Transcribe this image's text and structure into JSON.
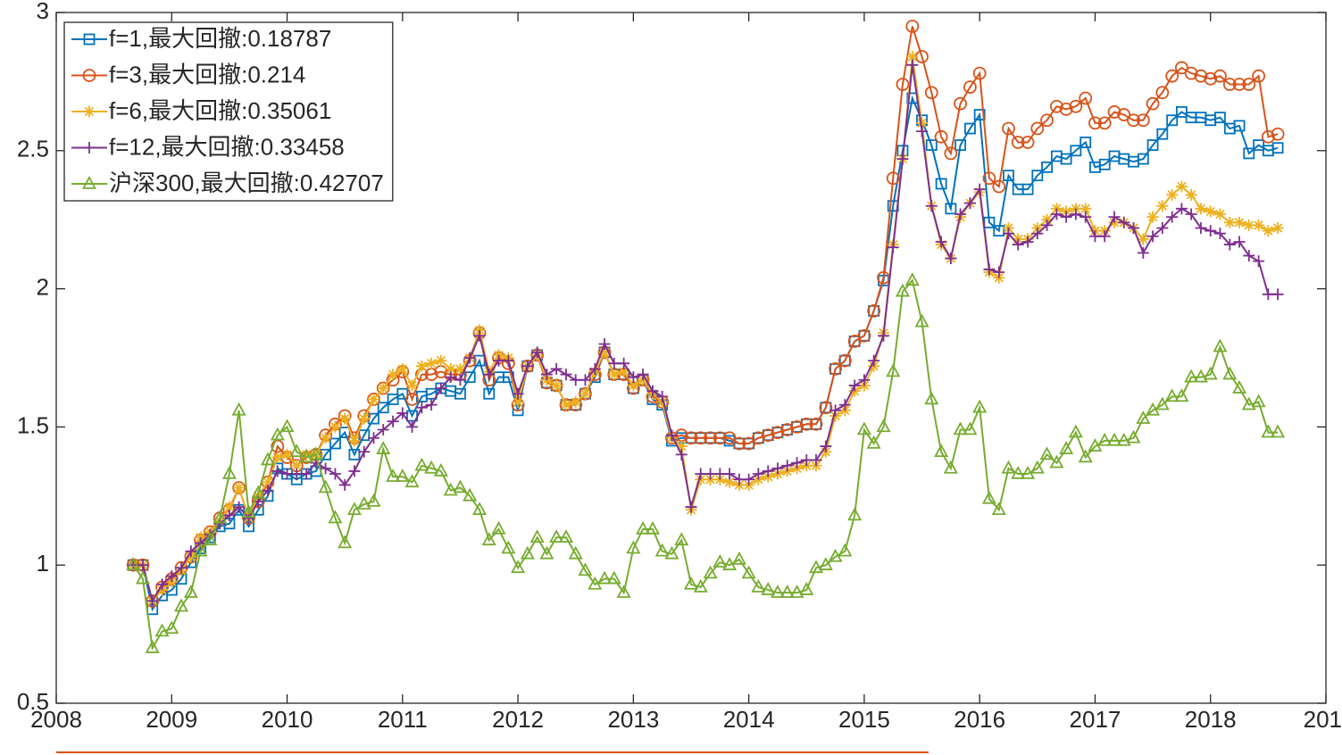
{
  "chart_data": {
    "type": "line",
    "x": [
      2008.667,
      2008.75,
      2008.833,
      2008.917,
      2009,
      2009.083,
      2009.167,
      2009.25,
      2009.333,
      2009.417,
      2009.5,
      2009.583,
      2009.667,
      2009.75,
      2009.833,
      2009.917,
      2010,
      2010.083,
      2010.167,
      2010.25,
      2010.333,
      2010.417,
      2010.5,
      2010.583,
      2010.667,
      2010.75,
      2010.833,
      2010.917,
      2011,
      2011.083,
      2011.167,
      2011.25,
      2011.333,
      2011.417,
      2011.5,
      2011.583,
      2011.667,
      2011.75,
      2011.833,
      2011.917,
      2012,
      2012.083,
      2012.167,
      2012.25,
      2012.333,
      2012.417,
      2012.5,
      2012.583,
      2012.667,
      2012.75,
      2012.833,
      2012.917,
      2013,
      2013.083,
      2013.167,
      2013.25,
      2013.333,
      2013.417,
      2013.5,
      2013.583,
      2013.667,
      2013.75,
      2013.833,
      2013.917,
      2014,
      2014.083,
      2014.167,
      2014.25,
      2014.333,
      2014.417,
      2014.5,
      2014.583,
      2014.667,
      2014.75,
      2014.833,
      2014.917,
      2015,
      2015.083,
      2015.167,
      2015.25,
      2015.333,
      2015.417,
      2015.5,
      2015.583,
      2015.667,
      2015.75,
      2015.833,
      2015.917,
      2016,
      2016.083,
      2016.167,
      2016.25,
      2016.333,
      2016.417,
      2016.5,
      2016.583,
      2016.667,
      2016.75,
      2016.833,
      2016.917,
      2017,
      2017.083,
      2017.167,
      2017.25,
      2017.333,
      2017.417,
      2017.5,
      2017.583,
      2017.667,
      2017.75,
      2017.833,
      2017.917,
      2018,
      2018.083,
      2018.167,
      2018.25,
      2018.333,
      2018.417,
      2018.5,
      2018.583
    ],
    "series": [
      {
        "name": "f=1,最大回撤:0.18787",
        "color": "#0072BD",
        "marker": "square",
        "values": [
          1.0,
          1.0,
          0.84,
          0.89,
          0.91,
          0.95,
          1.01,
          1.06,
          1.1,
          1.14,
          1.15,
          1.2,
          1.14,
          1.2,
          1.25,
          1.35,
          1.33,
          1.31,
          1.33,
          1.34,
          1.4,
          1.44,
          1.48,
          1.4,
          1.47,
          1.53,
          1.57,
          1.6,
          1.62,
          1.54,
          1.61,
          1.62,
          1.64,
          1.63,
          1.62,
          1.68,
          1.74,
          1.62,
          1.68,
          1.68,
          1.56,
          1.72,
          1.76,
          1.66,
          1.65,
          1.58,
          1.58,
          1.62,
          1.68,
          1.77,
          1.69,
          1.69,
          1.64,
          1.67,
          1.6,
          1.58,
          1.45,
          1.46,
          1.46,
          1.46,
          1.46,
          1.46,
          1.45,
          1.44,
          1.44,
          1.46,
          1.47,
          1.48,
          1.49,
          1.5,
          1.51,
          1.51,
          1.57,
          1.71,
          1.74,
          1.81,
          1.83,
          1.92,
          2.03,
          2.3,
          2.5,
          2.69,
          2.61,
          2.52,
          2.38,
          2.29,
          2.52,
          2.58,
          2.63,
          2.24,
          2.21,
          2.41,
          2.36,
          2.36,
          2.41,
          2.44,
          2.48,
          2.47,
          2.5,
          2.53,
          2.44,
          2.45,
          2.48,
          2.47,
          2.46,
          2.47,
          2.52,
          2.56,
          2.61,
          2.64,
          2.62,
          2.62,
          2.61,
          2.62,
          2.58,
          2.59,
          2.49,
          2.52,
          2.5,
          2.51
        ]
      },
      {
        "name": "f=3,最大回撤:0.214",
        "color": "#D95319",
        "marker": "circle",
        "values": [
          1.0,
          1.0,
          0.87,
          0.92,
          0.95,
          0.99,
          1.03,
          1.09,
          1.12,
          1.17,
          1.2,
          1.28,
          1.17,
          1.23,
          1.3,
          1.43,
          1.39,
          1.36,
          1.39,
          1.4,
          1.47,
          1.51,
          1.54,
          1.46,
          1.54,
          1.6,
          1.64,
          1.67,
          1.7,
          1.6,
          1.69,
          1.69,
          1.7,
          1.69,
          1.69,
          1.74,
          1.84,
          1.67,
          1.75,
          1.73,
          1.58,
          1.72,
          1.76,
          1.66,
          1.65,
          1.58,
          1.58,
          1.62,
          1.69,
          1.77,
          1.69,
          1.69,
          1.64,
          1.67,
          1.61,
          1.59,
          1.46,
          1.47,
          1.46,
          1.46,
          1.46,
          1.46,
          1.46,
          1.44,
          1.44,
          1.46,
          1.47,
          1.48,
          1.49,
          1.5,
          1.51,
          1.51,
          1.57,
          1.71,
          1.74,
          1.81,
          1.83,
          1.92,
          2.04,
          2.4,
          2.74,
          2.95,
          2.84,
          2.71,
          2.55,
          2.49,
          2.67,
          2.73,
          2.78,
          2.4,
          2.37,
          2.58,
          2.53,
          2.53,
          2.58,
          2.61,
          2.66,
          2.65,
          2.66,
          2.69,
          2.6,
          2.6,
          2.64,
          2.63,
          2.61,
          2.61,
          2.67,
          2.71,
          2.77,
          2.8,
          2.78,
          2.77,
          2.76,
          2.77,
          2.74,
          2.74,
          2.74,
          2.77,
          2.55,
          2.56
        ]
      },
      {
        "name": "f=6,最大回撤:0.35061",
        "color": "#EDB120",
        "marker": "asterisk",
        "values": [
          1.0,
          1.0,
          0.87,
          0.91,
          0.94,
          0.98,
          1.03,
          1.1,
          1.12,
          1.16,
          1.21,
          1.28,
          1.17,
          1.25,
          1.3,
          1.39,
          1.4,
          1.36,
          1.4,
          1.4,
          1.46,
          1.5,
          1.53,
          1.45,
          1.53,
          1.6,
          1.64,
          1.69,
          1.71,
          1.65,
          1.72,
          1.73,
          1.74,
          1.71,
          1.71,
          1.75,
          1.85,
          1.7,
          1.76,
          1.75,
          1.59,
          1.72,
          1.76,
          1.67,
          1.65,
          1.58,
          1.59,
          1.62,
          1.7,
          1.77,
          1.69,
          1.7,
          1.65,
          1.67,
          1.62,
          1.59,
          1.46,
          1.43,
          1.2,
          1.31,
          1.31,
          1.31,
          1.3,
          1.29,
          1.29,
          1.31,
          1.32,
          1.33,
          1.34,
          1.35,
          1.36,
          1.36,
          1.41,
          1.54,
          1.56,
          1.63,
          1.65,
          1.72,
          1.84,
          2.16,
          2.47,
          2.84,
          2.6,
          2.3,
          2.16,
          2.11,
          2.26,
          2.31,
          2.35,
          2.06,
          2.04,
          2.22,
          2.18,
          2.18,
          2.22,
          2.25,
          2.29,
          2.28,
          2.29,
          2.29,
          2.21,
          2.21,
          2.24,
          2.24,
          2.22,
          2.18,
          2.26,
          2.3,
          2.34,
          2.37,
          2.34,
          2.29,
          2.28,
          2.27,
          2.24,
          2.24,
          2.23,
          2.23,
          2.21,
          2.22
        ]
      },
      {
        "name": "f=12,最大回撤:0.33458",
        "color": "#7E2F8E",
        "marker": "plus",
        "values": [
          1.0,
          1.0,
          0.87,
          0.93,
          0.96,
          0.99,
          1.05,
          1.08,
          1.11,
          1.15,
          1.18,
          1.21,
          1.17,
          1.23,
          1.27,
          1.34,
          1.33,
          1.33,
          1.33,
          1.37,
          1.35,
          1.33,
          1.29,
          1.34,
          1.41,
          1.46,
          1.49,
          1.52,
          1.55,
          1.5,
          1.57,
          1.58,
          1.64,
          1.68,
          1.67,
          1.75,
          1.83,
          1.69,
          1.74,
          1.74,
          1.62,
          1.72,
          1.77,
          1.69,
          1.71,
          1.69,
          1.67,
          1.67,
          1.71,
          1.8,
          1.73,
          1.73,
          1.68,
          1.69,
          1.63,
          1.61,
          1.47,
          1.4,
          1.21,
          1.33,
          1.33,
          1.33,
          1.33,
          1.31,
          1.31,
          1.33,
          1.34,
          1.35,
          1.36,
          1.37,
          1.38,
          1.38,
          1.43,
          1.56,
          1.58,
          1.65,
          1.67,
          1.74,
          1.83,
          2.15,
          2.47,
          2.81,
          2.57,
          2.3,
          2.17,
          2.11,
          2.27,
          2.31,
          2.36,
          2.07,
          2.06,
          2.2,
          2.16,
          2.17,
          2.2,
          2.23,
          2.27,
          2.26,
          2.27,
          2.26,
          2.19,
          2.19,
          2.26,
          2.24,
          2.22,
          2.13,
          2.19,
          2.22,
          2.26,
          2.29,
          2.27,
          2.22,
          2.21,
          2.2,
          2.16,
          2.17,
          2.12,
          2.1,
          1.98,
          1.98
        ]
      },
      {
        "name": "沪深300,最大回撤:0.42707",
        "color": "#77AC30",
        "marker": "triangle",
        "values": [
          1.0,
          0.95,
          0.7,
          0.76,
          0.77,
          0.85,
          0.9,
          1.05,
          1.09,
          1.17,
          1.33,
          1.56,
          1.19,
          1.26,
          1.38,
          1.47,
          1.5,
          1.41,
          1.39,
          1.4,
          1.28,
          1.17,
          1.08,
          1.2,
          1.22,
          1.23,
          1.42,
          1.32,
          1.32,
          1.3,
          1.36,
          1.35,
          1.34,
          1.27,
          1.28,
          1.25,
          1.2,
          1.09,
          1.13,
          1.06,
          0.99,
          1.04,
          1.1,
          1.04,
          1.1,
          1.1,
          1.04,
          0.98,
          0.93,
          0.95,
          0.95,
          0.9,
          1.06,
          1.13,
          1.13,
          1.05,
          1.04,
          1.09,
          0.93,
          0.92,
          0.97,
          1.01,
          1.0,
          1.02,
          0.97,
          0.92,
          0.91,
          0.9,
          0.9,
          0.9,
          0.91,
          0.99,
          1.0,
          1.03,
          1.05,
          1.18,
          1.49,
          1.44,
          1.5,
          1.7,
          1.99,
          2.03,
          1.88,
          1.6,
          1.41,
          1.35,
          1.49,
          1.49,
          1.57,
          1.24,
          1.2,
          1.35,
          1.33,
          1.33,
          1.35,
          1.4,
          1.37,
          1.42,
          1.48,
          1.39,
          1.43,
          1.45,
          1.45,
          1.45,
          1.46,
          1.53,
          1.56,
          1.58,
          1.61,
          1.61,
          1.68,
          1.68,
          1.69,
          1.79,
          1.69,
          1.64,
          1.58,
          1.59,
          1.48,
          1.48
        ]
      }
    ],
    "xlim": [
      2008,
      2019
    ],
    "xticks": [
      2008,
      2009,
      2010,
      2011,
      2012,
      2013,
      2014,
      2015,
      2016,
      2017,
      2018,
      {
        "value": 2019,
        "label": "201"
      }
    ],
    "ylim": [
      0.5,
      3
    ],
    "yticks": [
      0.5,
      1,
      1.5,
      2,
      2.5,
      3
    ],
    "legend": "upper left"
  }
}
